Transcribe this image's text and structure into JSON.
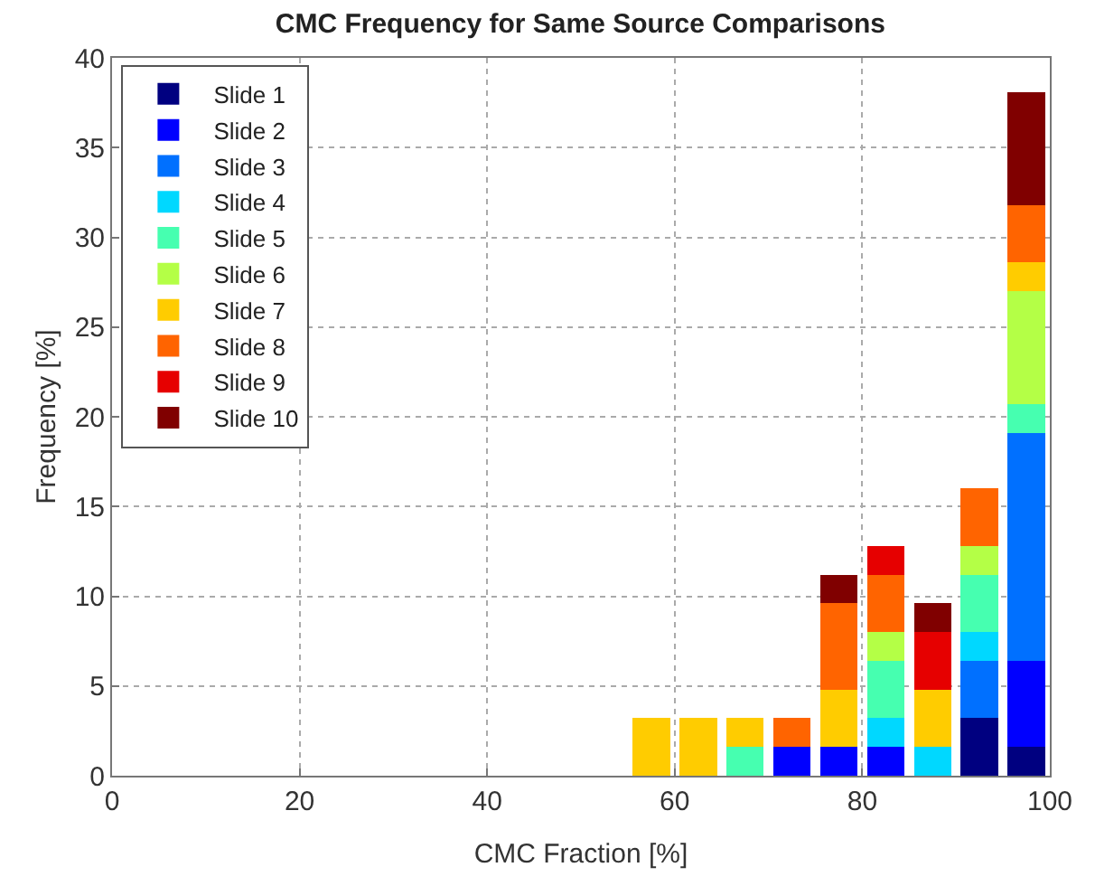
{
  "chart_data": {
    "type": "bar",
    "stacked": true,
    "title": "CMC Frequency for Same Source Comparisons",
    "xlabel": "CMC Fraction [%]",
    "ylabel": "Frequency [%]",
    "x": [
      57.5,
      62.5,
      67.5,
      72.5,
      77.5,
      82.5,
      87.5,
      92.5,
      97.5
    ],
    "xlim": [
      0,
      100
    ],
    "xticks": [
      0,
      20,
      40,
      60,
      80,
      100
    ],
    "ylim": [
      0,
      40
    ],
    "yticks": [
      0,
      5,
      10,
      15,
      20,
      25,
      30,
      35,
      40
    ],
    "grid": true,
    "legend": "top left",
    "series": [
      {
        "name": "Slide 1",
        "color": "#000080",
        "values": [
          null,
          null,
          null,
          null,
          null,
          null,
          null,
          3.2,
          1.6
        ]
      },
      {
        "name": "Slide 2",
        "color": "#0000ff",
        "values": [
          null,
          null,
          null,
          1.6,
          1.6,
          1.6,
          null,
          null,
          4.8
        ]
      },
      {
        "name": "Slide 3",
        "color": "#0070ff",
        "values": [
          null,
          null,
          null,
          null,
          null,
          null,
          null,
          3.2,
          12.7
        ]
      },
      {
        "name": "Slide 4",
        "color": "#00d8ff",
        "values": [
          null,
          null,
          null,
          null,
          null,
          1.6,
          1.6,
          1.6,
          null
        ]
      },
      {
        "name": "Slide 5",
        "color": "#46ffb0",
        "values": [
          null,
          null,
          1.6,
          null,
          null,
          3.2,
          null,
          3.2,
          1.6
        ]
      },
      {
        "name": "Slide 6",
        "color": "#b4ff46",
        "values": [
          null,
          null,
          null,
          null,
          null,
          1.6,
          null,
          1.6,
          6.3
        ]
      },
      {
        "name": "Slide 7",
        "color": "#ffcc00",
        "values": [
          3.2,
          3.2,
          1.6,
          null,
          3.2,
          null,
          3.2,
          null,
          1.6
        ]
      },
      {
        "name": "Slide 8",
        "color": "#ff6400",
        "values": [
          null,
          null,
          null,
          1.6,
          4.8,
          3.2,
          null,
          3.2,
          3.2
        ]
      },
      {
        "name": "Slide 9",
        "color": "#e60000",
        "values": [
          null,
          null,
          null,
          null,
          null,
          1.6,
          3.2,
          null,
          null
        ]
      },
      {
        "name": "Slide 10",
        "color": "#800000",
        "values": [
          null,
          null,
          null,
          null,
          1.6,
          null,
          1.6,
          null,
          6.3
        ]
      }
    ]
  }
}
